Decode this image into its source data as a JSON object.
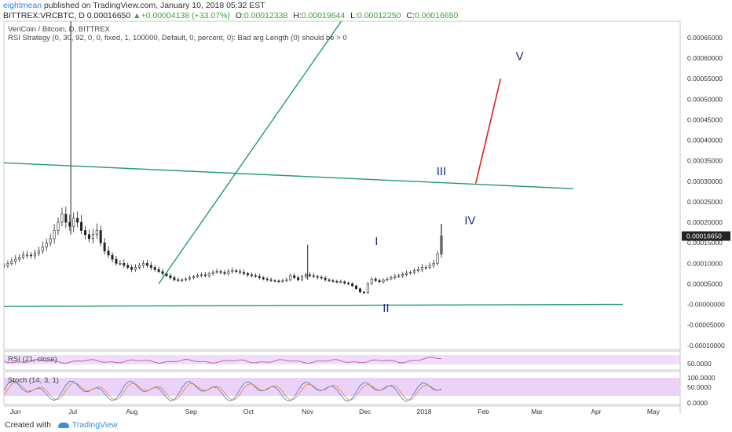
{
  "header": {
    "user": "eightmean",
    "published": "published on TradingView.com, January 10, 2018 05:32 EST",
    "symbol": "BITTREX:VRCBTC, D",
    "last": "0.00016650",
    "change_arrow": "▲",
    "change": "+0.00004138 (+33.07%)",
    "o_label": "O:",
    "o_value": "0.00012338",
    "h_label": "H:",
    "h_value": "0.00019644",
    "l_label": "L:",
    "l_value": "0.00012250",
    "c_label": "C:",
    "c_value": "0.00016650"
  },
  "legend": {
    "line1": "VeriCoin / Bitcoin, D, BITTREX",
    "line2": "RSI Strategy (0, 30, 92, 0, 0, fixed, 1, 100000, Default, 0, percent, 0): Bad arg Length (0) should be > 0"
  },
  "footer": {
    "created_with": "Created with",
    "brand": "TradingView"
  },
  "colors": {
    "candle": "#222222",
    "trendline": "#1f9b6f",
    "projection": "#e02020",
    "wave_label": "#1f2a7a",
    "rsi_line": "#b94fb8",
    "band_fill": "#e6c8f5",
    "price_tag": "#222222"
  },
  "chart_data": [
    {
      "type": "candlestick",
      "title": "VeriCoin / Bitcoin, D, BITTREX",
      "x_ticks": [
        "Jun",
        "Jul",
        "Aug",
        "Sep",
        "Oct",
        "Nov",
        "Dec",
        "2018",
        "Feb",
        "Mar",
        "Apr",
        "May"
      ],
      "y_ticks": [
        "0.00065000",
        "0.00060000",
        "0.00055000",
        "0.00050000",
        "0.00045000",
        "0.00040000",
        "0.00035000",
        "0.00030000",
        "0.00025000",
        "0.00020000",
        "0.00015000",
        "0.00010000",
        "0.00005000",
        "-0.00000000",
        "-0.00005000",
        "-0.00010000"
      ],
      "ylim": [
        -0.00011,
        0.00069
      ],
      "last_price_tag": "0.00016650",
      "closes": [
        9.5e-05,
        0.0001,
        0.000105,
        0.00011,
        0.000115,
        0.00012,
        0.00012,
        0.000118,
        0.000125,
        0.00013,
        0.00014,
        0.00015,
        0.00016,
        0.00018,
        0.0002,
        0.00022,
        0.0002,
        0.00019,
        0.00021,
        0.0002,
        0.00018,
        0.00017,
        0.00016,
        0.00017,
        0.00018,
        0.00015,
        0.00013,
        0.00012,
        0.00011,
        0.0001,
        0.0001,
        9.5e-05,
        9e-05,
        8.5e-05,
        9e-05,
        9.5e-05,
        0.0001,
        9.5e-05,
        9e-05,
        8.5e-05,
        8e-05,
        7.5e-05,
        7e-05,
        6.5e-05,
        6e-05,
        5.8e-05,
        6e-05,
        6.2e-05,
        6.5e-05,
        6.8e-05,
        7e-05,
        7.2e-05,
        7e-05,
        7.5e-05,
        7.8e-05,
        8e-05,
        7.8e-05,
        7.5e-05,
        8e-05,
        8.2e-05,
        8e-05,
        7.8e-05,
        7.5e-05,
        7.2e-05,
        7e-05,
        6.8e-05,
        6.5e-05,
        6.2e-05,
        6e-05,
        5.8e-05,
        5.7e-05,
        5.6e-05,
        5.8e-05,
        6e-05,
        7e-05,
        6.5e-05,
        6e-05,
        6.8e-05,
        7.2e-05,
        7e-05,
        6.8e-05,
        6.6e-05,
        6.4e-05,
        6e-05,
        5.8e-05,
        5.6e-05,
        5.5e-05,
        5.5e-05,
        5.2e-05,
        5e-05,
        4.5e-05,
        3.8e-05,
        3e-05,
        2.8e-05,
        5e-05,
        6.2e-05,
        5.8e-05,
        5.5e-05,
        6e-05,
        6.2e-05,
        6.5e-05,
        6.8e-05,
        7e-05,
        7.3e-05,
        7.6e-05,
        7.8e-05,
        8.2e-05,
        8.5e-05,
        9e-05,
        9e-05,
        9.5e-05,
        0.0001,
        0.000123,
        0.0001665
      ],
      "x_range": [
        "Jun 2017",
        "Jan 2018"
      ]
    },
    {
      "type": "line",
      "title": "RSI (21, close)",
      "y_ticks": [
        "50.0000"
      ]
    },
    {
      "type": "line",
      "title": "Stoch (14, 3, 1)",
      "y_ticks": [
        "100.0000",
        "50.0000",
        "0.0000"
      ]
    }
  ],
  "annotations": {
    "trendlines": [
      {
        "name": "upper-trendline",
        "from_date": "2017-05-26",
        "from_value": 0.000345,
        "to_date": "2018-03-20",
        "to_value": 0.000282
      },
      {
        "name": "lower-trendline",
        "from_date": "2017-05-26",
        "from_value": -5e-06,
        "to_date": "2018-04-15",
        "to_value": 0.0
      },
      {
        "name": "steep-trendline",
        "from_date": "2017-08-15",
        "from_value": 5e-05,
        "to_date": "2017-12-20",
        "to_value": 0.0009
      }
    ],
    "projection": {
      "from_date": "2018-01-28",
      "from_value": 0.000295,
      "to_date": "2018-02-10",
      "to_value": 0.00055
    },
    "wave_labels": [
      {
        "text": "I",
        "date": "2017-12-07",
        "value": 0.000145
      },
      {
        "text": "II",
        "date": "2017-12-12",
        "value": -1.8e-05
      },
      {
        "text": "III",
        "date": "2018-01-10",
        "value": 0.000315
      },
      {
        "text": "IV",
        "date": "2018-01-25",
        "value": 0.000195
      },
      {
        "text": "V",
        "date": "2018-02-20",
        "value": 0.000595
      }
    ]
  }
}
